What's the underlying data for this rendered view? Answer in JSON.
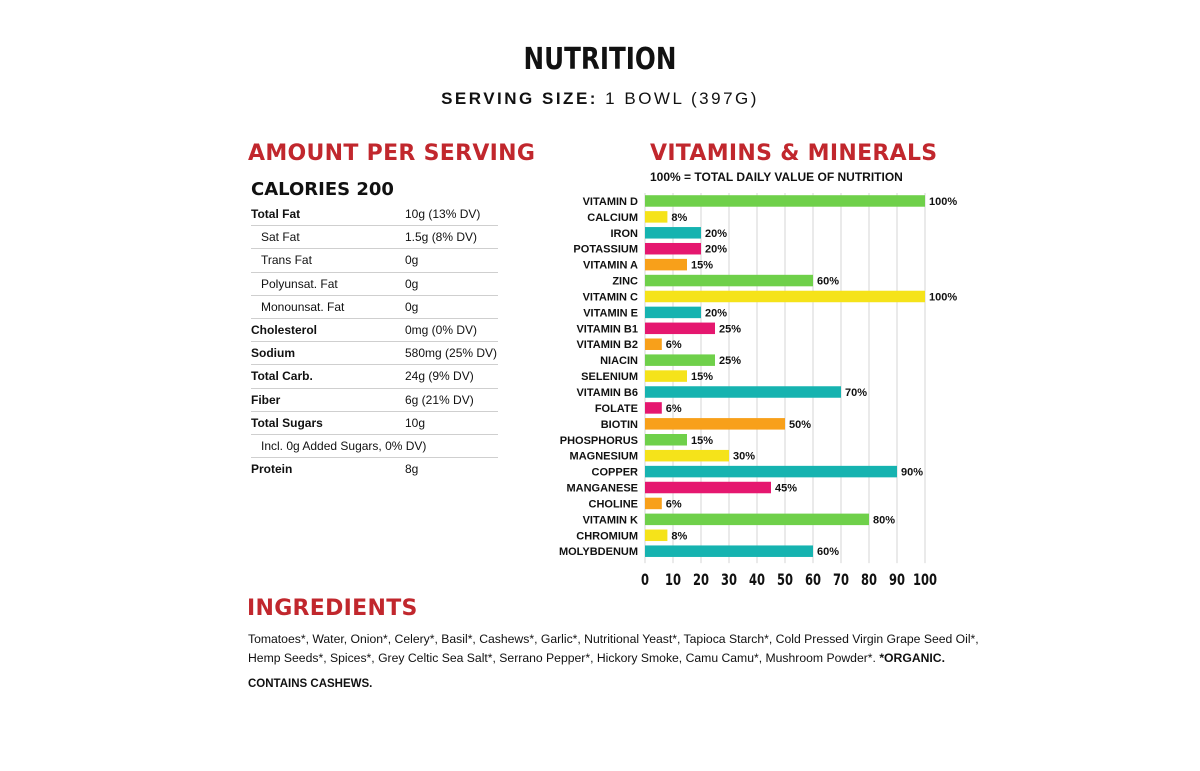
{
  "header": {
    "title": "NUTRITION",
    "serving_label": "SERVING SIZE:",
    "serving_value": " 1 BOWL (397G)"
  },
  "amount": {
    "heading": "AMOUNT PER SERVING",
    "calories": "CALORIES 200",
    "rows": [
      {
        "label": "Total Fat",
        "value": "10g (13% DV)",
        "bold": true,
        "indent": false
      },
      {
        "label": "Sat Fat",
        "value": "1.5g (8% DV)",
        "bold": false,
        "indent": true
      },
      {
        "label": "Trans Fat",
        "value": "0g",
        "bold": false,
        "indent": true
      },
      {
        "label": "Polyunsat. Fat",
        "value": "0g",
        "bold": false,
        "indent": true
      },
      {
        "label": "Monounsat. Fat",
        "value": "0g",
        "bold": false,
        "indent": true
      },
      {
        "label": "Cholesterol",
        "value": "0mg (0% DV)",
        "bold": true,
        "indent": false
      },
      {
        "label": "Sodium",
        "value": "580mg (25% DV)",
        "bold": true,
        "indent": false
      },
      {
        "label": "Total Carb.",
        "value": "24g (9% DV)",
        "bold": true,
        "indent": false
      },
      {
        "label": "Fiber",
        "value": "6g (21% DV)",
        "bold": true,
        "indent": false
      },
      {
        "label": "Total Sugars",
        "value": "10g",
        "bold": true,
        "indent": false
      },
      {
        "label": "Incl. 0g Added Sugars, 0% DV)",
        "value": "",
        "bold": false,
        "indent": true
      },
      {
        "label": "Protein",
        "value": "8g",
        "bold": true,
        "indent": false
      }
    ]
  },
  "vitamins": {
    "heading": "VITAMINS & MINERALS",
    "subtitle": "100% = TOTAL DAILY VALUE OF NUTRITION"
  },
  "colors": {
    "green": "#6fd04a",
    "yellow": "#f5e31a",
    "teal": "#16b3b0",
    "pink": "#e5176f",
    "orange": "#f8a01a",
    "heading_red": "#c1272d"
  },
  "chart_data": {
    "type": "bar",
    "orientation": "horizontal",
    "categories": [
      "VITAMIN D",
      "CALCIUM",
      "IRON",
      "POTASSIUM",
      "VITAMIN A",
      "ZINC",
      "VITAMIN C",
      "VITAMIN E",
      "VITAMIN B1",
      "VITAMIN B2",
      "NIACIN",
      "SELENIUM",
      "VITAMIN B6",
      "FOLATE",
      "BIOTIN",
      "PHOSPHORUS",
      "MAGNESIUM",
      "COPPER",
      "MANGANESE",
      "CHOLINE",
      "VITAMIN K",
      "CHROMIUM",
      "MOLYBDENUM"
    ],
    "values": [
      100,
      8,
      20,
      20,
      15,
      60,
      100,
      20,
      25,
      6,
      25,
      15,
      70,
      6,
      50,
      15,
      30,
      90,
      45,
      6,
      80,
      8,
      60
    ],
    "value_labels": [
      "100%",
      "8%",
      "20%",
      "20%",
      "15%",
      "60%",
      "100%",
      "20%",
      "25%",
      "6%",
      "25%",
      "15%",
      "70%",
      "6%",
      "50%",
      "15%",
      "30%",
      "90%",
      "45%",
      "6%",
      "80%",
      "8%",
      "60%"
    ],
    "bar_colors": [
      "green",
      "yellow",
      "teal",
      "pink",
      "orange",
      "green",
      "yellow",
      "teal",
      "pink",
      "orange",
      "green",
      "yellow",
      "teal",
      "pink",
      "orange",
      "green",
      "yellow",
      "teal",
      "pink",
      "orange",
      "green",
      "yellow",
      "teal"
    ],
    "xlim": [
      0,
      100
    ],
    "xticks": [
      "0",
      "10",
      "20",
      "30",
      "40",
      "50",
      "60",
      "70",
      "80",
      "90",
      "100"
    ],
    "grid": true
  },
  "ingredients": {
    "heading": "INGREDIENTS",
    "text": "Tomatoes*, Water, Onion*, Celery*, Basil*, Cashews*, Garlic*, Nutritional Yeast*, Tapioca Starch*, Cold Pressed Virgin Grape Seed Oil*, Hemp Seeds*, Spices*, Grey Celtic Sea Salt*, Serrano Pepper*, Hickory Smoke, Camu Camu*, Mushroom Powder*. ",
    "organic": "*ORGANIC.",
    "contains": "CONTAINS CASHEWS."
  }
}
